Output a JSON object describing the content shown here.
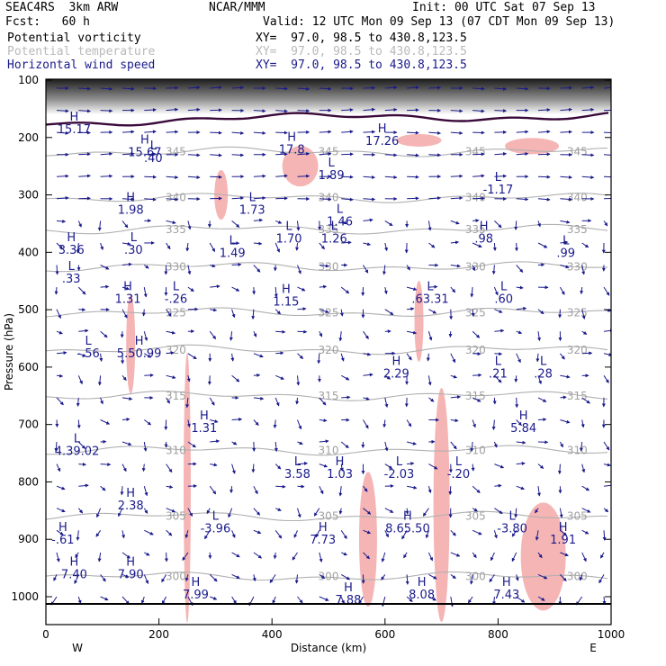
{
  "header": {
    "experiment": "SEAC4RS  3km ARW",
    "org": "NCAR/MMM",
    "init": "Init: 00 UTC Sat 07 Sep 13",
    "fcst": "Fcst:   60 h",
    "valid": "Valid: 12 UTC Mon 09 Sep 13 (07 CDT Mon 09 Sep 13)",
    "fields": [
      {
        "name": "Potential vorticity",
        "xy": "XY=  97.0, 98.5 to 430.8,123.5",
        "color": "#000000"
      },
      {
        "name": "Potential temperature",
        "xy": "XY=  97.0, 98.5 to 430.8,123.5",
        "color": "#b9b9b9"
      },
      {
        "name": "Horizontal wind speed",
        "xy": "XY=  97.0, 98.5 to 430.8,123.5",
        "color": "#1a1a8c"
      }
    ]
  },
  "chart_data": {
    "type": "cross-section",
    "xlabel": "Distance (km)",
    "ylabel": "Pressure (hPa)",
    "xlim": [
      0,
      1000
    ],
    "ylim": [
      1025,
      100
    ],
    "x_ticks": [
      0,
      200,
      400,
      600,
      800,
      1000
    ],
    "y_ticks": [
      100,
      200,
      300,
      400,
      500,
      600,
      700,
      800,
      900,
      1000
    ],
    "endpoint_labels": {
      "left": "W",
      "right": "E"
    },
    "theta_contours": [
      {
        "label": "345",
        "p": 225
      },
      {
        "label": "340",
        "p": 305
      },
      {
        "label": "335",
        "p": 360
      },
      {
        "label": "330",
        "p": 425
      },
      {
        "label": "325",
        "p": 505
      },
      {
        "label": "320",
        "p": 570
      },
      {
        "label": "315",
        "p": 650
      },
      {
        "label": "310",
        "p": 745
      },
      {
        "label": "305",
        "p": 860
      },
      {
        "label": "300",
        "p": 965
      }
    ],
    "pv_contours": [
      {
        "p": 172
      }
    ],
    "pv_shading": [
      {
        "x": 660,
        "p": 205,
        "w": 50,
        "h": 14
      },
      {
        "x": 860,
        "p": 215,
        "w": 60,
        "h": 18
      },
      {
        "x": 450,
        "p": 250,
        "w": 40,
        "h": 45
      },
      {
        "x": 310,
        "p": 300,
        "w": 15,
        "h": 55
      },
      {
        "x": 660,
        "p": 520,
        "w": 10,
        "h": 90
      },
      {
        "x": 150,
        "p": 560,
        "w": 10,
        "h": 110
      },
      {
        "x": 250,
        "p": 810,
        "w": 8,
        "h": 300
      },
      {
        "x": 700,
        "p": 840,
        "w": 18,
        "h": 260
      },
      {
        "x": 570,
        "p": 900,
        "w": 20,
        "h": 150
      },
      {
        "x": 880,
        "p": 930,
        "w": 50,
        "h": 120
      }
    ],
    "extrema": [
      {
        "kind": "H",
        "value": "1.98",
        "x": 150,
        "p": 325
      },
      {
        "kind": "L",
        "value": "1.73",
        "x": 365,
        "p": 325
      },
      {
        "kind": "L",
        "value": "1.70",
        "x": 430,
        "p": 375
      },
      {
        "kind": "L",
        "value": "1.26",
        "x": 510,
        "p": 375
      },
      {
        "kind": "L",
        "value": "1.46",
        "x": 520,
        "p": 345
      },
      {
        "kind": "H",
        "value": ".98",
        "x": 775,
        "p": 375
      },
      {
        "kind": "L",
        "value": ".99",
        "x": 920,
        "p": 400
      },
      {
        "kind": "L",
        "value": "1.49",
        "x": 330,
        "p": 400
      },
      {
        "kind": "L",
        "value": ".30",
        "x": 155,
        "p": 395
      },
      {
        "kind": "H",
        "value": "3.36",
        "x": 45,
        "p": 395
      },
      {
        "kind": "L",
        "value": ".33",
        "x": 45,
        "p": 445
      },
      {
        "kind": "H",
        "value": "1.31",
        "x": 145,
        "p": 480
      },
      {
        "kind": "L",
        "value": "-.26",
        "x": 230,
        "p": 480
      },
      {
        "kind": "H",
        "value": "1.15",
        "x": 425,
        "p": 485
      },
      {
        "kind": "L",
        "value": ".63.31",
        "x": 680,
        "p": 480
      },
      {
        "kind": "L",
        "value": ".60",
        "x": 810,
        "p": 480
      },
      {
        "kind": "L",
        "value": "-.56",
        "x": 75,
        "p": 575
      },
      {
        "kind": "H",
        "value": "5.50.99",
        "x": 165,
        "p": 575
      },
      {
        "kind": "H",
        "value": "2.29",
        "x": 620,
        "p": 610
      },
      {
        "kind": "L",
        "value": ".21",
        "x": 800,
        "p": 610
      },
      {
        "kind": "L",
        "value": ".28",
        "x": 880,
        "p": 610
      },
      {
        "kind": "H",
        "value": "1.31",
        "x": 280,
        "p": 705
      },
      {
        "kind": "H",
        "value": "5.84",
        "x": 845,
        "p": 705
      },
      {
        "kind": "L",
        "value": "4.39.02",
        "x": 55,
        "p": 745
      },
      {
        "kind": "L",
        "value": "3.58",
        "x": 445,
        "p": 785
      },
      {
        "kind": "H",
        "value": "1.03",
        "x": 520,
        "p": 785
      },
      {
        "kind": "L",
        "value": "-2.03",
        "x": 625,
        "p": 785
      },
      {
        "kind": "L",
        "value": "-.20",
        "x": 730,
        "p": 785
      },
      {
        "kind": "H",
        "value": "2.38",
        "x": 150,
        "p": 840
      },
      {
        "kind": "L",
        "value": "-3.96",
        "x": 300,
        "p": 880
      },
      {
        "kind": "H",
        "value": "8.65.50",
        "x": 640,
        "p": 880
      },
      {
        "kind": "L",
        "value": "-3.80",
        "x": 825,
        "p": 880
      },
      {
        "kind": "H",
        "value": "1.91",
        "x": 915,
        "p": 900
      },
      {
        "kind": "H",
        "value": "-.61",
        "x": 30,
        "p": 900
      },
      {
        "kind": "H",
        "value": "7.73",
        "x": 490,
        "p": 900
      },
      {
        "kind": "H",
        "value": "7.40",
        "x": 50,
        "p": 960
      },
      {
        "kind": "H",
        "value": "7.90",
        "x": 150,
        "p": 960
      },
      {
        "kind": "H",
        "value": "7.99",
        "x": 265,
        "p": 995
      },
      {
        "kind": "H",
        "value": "7.88",
        "x": 535,
        "p": 1005
      },
      {
        "kind": "H",
        "value": "8.08",
        "x": 665,
        "p": 995
      },
      {
        "kind": "H",
        "value": "7.43",
        "x": 815,
        "p": 995
      },
      {
        "kind": "H",
        "value": "15.67",
        "x": 175,
        "p": 225
      },
      {
        "kind": "L",
        "value": ".40",
        "x": 190,
        "p": 235
      },
      {
        "kind": "H",
        "value": "17.8",
        "x": 435,
        "p": 220
      },
      {
        "kind": "H",
        "value": "17.26",
        "x": 595,
        "p": 205
      },
      {
        "kind": "L",
        "value": "1.89",
        "x": 505,
        "p": 265
      },
      {
        "kind": "L",
        "value": "-1.17",
        "x": 800,
        "p": 290
      },
      {
        "kind": "H",
        "value": "15.17",
        "x": 50,
        "p": 185
      }
    ]
  }
}
